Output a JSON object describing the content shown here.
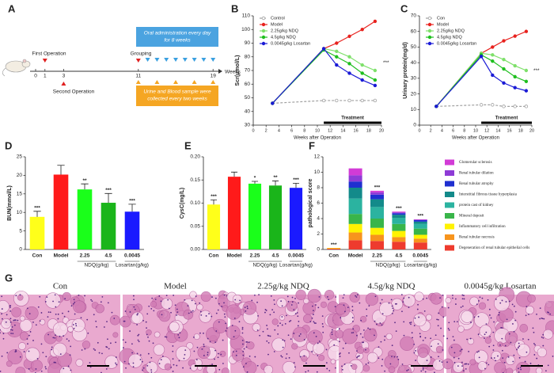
{
  "panel_labels": [
    "A",
    "B",
    "C",
    "D",
    "E",
    "F",
    "G"
  ],
  "timeline": {
    "ticks": [
      0,
      1,
      3,
      11,
      19
    ],
    "unit": "Weeks",
    "events": [
      "First Operation",
      "Second Operation",
      "Grouping"
    ],
    "boxes": [
      [
        "Oral administration every day",
        "for 8 weeks"
      ],
      [
        "Urine and Blood sample were",
        "collected every two weeks"
      ]
    ]
  },
  "chart_data": [
    {
      "type": "line",
      "ylabel": "Scr(μmol/L)",
      "xlabel": "Weeks after Operation",
      "annotation": "Treatment",
      "significance": "***",
      "legend": "upper left",
      "x": [
        3,
        11,
        13,
        15,
        17,
        19
      ],
      "xlim": [
        0,
        20
      ],
      "xticks": [
        0,
        2,
        4,
        6,
        8,
        10,
        12,
        14,
        16,
        18,
        20
      ],
      "ylim": [
        30,
        110
      ],
      "yticks": [
        30,
        40,
        50,
        60,
        70,
        80,
        90,
        100,
        110
      ],
      "series": [
        {
          "name": "Control",
          "color": "#a0a0a0",
          "linestyle": "dashed",
          "values": [
            46,
            48,
            48,
            48,
            48,
            48
          ]
        },
        {
          "name": "Model",
          "color": "#e8221e",
          "values": [
            46,
            86,
            90,
            95,
            100,
            106
          ]
        },
        {
          "name": "2.25g/kg NDQ",
          "color": "#7ee06a",
          "values": [
            46,
            86,
            84,
            80,
            74,
            70
          ]
        },
        {
          "name": "4.5g/kg NDQ",
          "color": "#1fbf1f",
          "values": [
            46,
            85,
            80,
            75,
            68,
            63
          ]
        },
        {
          "name": "0.0045g/kg Losartan",
          "color": "#1b1bd6",
          "values": [
            46,
            86,
            74,
            68,
            63,
            59
          ]
        }
      ]
    },
    {
      "type": "line",
      "ylabel": "Urinary protein(mg/d)",
      "xlabel": "Weeks after Operation",
      "annotation": "Treatment",
      "significance": "***",
      "legend": "upper left",
      "x": [
        3,
        11,
        13,
        15,
        17,
        19
      ],
      "xlim": [
        0,
        20
      ],
      "xticks": [
        0,
        2,
        4,
        6,
        8,
        10,
        12,
        14,
        16,
        18,
        20
      ],
      "ylim": [
        0,
        70
      ],
      "yticks": [
        0,
        10,
        20,
        30,
        40,
        50,
        60,
        70
      ],
      "series": [
        {
          "name": "Con",
          "color": "#a0a0a0",
          "linestyle": "dashed",
          "values": [
            12,
            13,
            13,
            12,
            12,
            12
          ]
        },
        {
          "name": "Model",
          "color": "#e8221e",
          "values": [
            12,
            46,
            50,
            54,
            57,
            60
          ]
        },
        {
          "name": "2.25g/kg NDQ",
          "color": "#7ee06a",
          "values": [
            12,
            46,
            45,
            42,
            38,
            35
          ]
        },
        {
          "name": "4.5g/kg NDQ",
          "color": "#1fbf1f",
          "values": [
            12,
            45,
            41,
            36,
            31,
            28
          ]
        },
        {
          "name": "0.0045g/kg Losartan",
          "color": "#1b1bd6",
          "values": [
            12,
            44,
            32,
            27,
            24,
            22
          ]
        }
      ]
    },
    {
      "type": "bar",
      "ylabel": "BUN(mmol/L)",
      "categories": [
        "Con",
        "Model",
        "2.25",
        "4.5",
        "0.0045"
      ],
      "group_labels": [
        "NDQ(g/kg)",
        "Losartan(g/kg)"
      ],
      "values": [
        8.8,
        20.2,
        16.2,
        12.6,
        10.2
      ],
      "errors": [
        1.5,
        2.5,
        1.5,
        2.5,
        2.0
      ],
      "colors": [
        "#ffff1a",
        "#ff1a1a",
        "#1aff1a",
        "#1ab51a",
        "#1a1aff"
      ],
      "significance": [
        "***",
        null,
        "**",
        "***",
        "***"
      ],
      "ylim": [
        0,
        25
      ],
      "yticks": [
        0,
        5,
        10,
        15,
        20,
        25
      ]
    },
    {
      "type": "bar",
      "ylabel": "CysC(mg/L)",
      "categories": [
        "Con",
        "Model",
        "2.25",
        "4.5",
        "0.0045"
      ],
      "group_labels": [
        "NDQ(g/kg)",
        "Losartan(g/kg)"
      ],
      "values": [
        0.097,
        0.157,
        0.142,
        0.138,
        0.133
      ],
      "errors": [
        0.01,
        0.01,
        0.005,
        0.01,
        0.01
      ],
      "colors": [
        "#ffff1a",
        "#ff1a1a",
        "#1aff1a",
        "#1ab51a",
        "#1a1aff"
      ],
      "significance": [
        "***",
        null,
        "*",
        "**",
        "***"
      ],
      "ylim": [
        0,
        0.2
      ],
      "yticks": [
        {
          "value": 0,
          "label": "0.00"
        },
        {
          "value": 0.05,
          "label": "0.05"
        },
        {
          "value": 0.1,
          "label": "0.10"
        },
        {
          "value": 0.15,
          "label": "0.15"
        },
        {
          "value": 0.2,
          "label": "0.20"
        }
      ]
    },
    {
      "type": "stacked_bar",
      "ylabel": "pathological score",
      "categories": [
        "Con",
        "Model",
        "2.25",
        "4.5",
        "0.0045"
      ],
      "group_labels": [
        "NDQ(g/kg)",
        "Losartan(g/kg)"
      ],
      "significance": [
        "***",
        null,
        "***",
        "***",
        "***"
      ],
      "ylim": [
        0,
        12
      ],
      "yticks": [
        0,
        2,
        4,
        6,
        8,
        10,
        12
      ],
      "series": [
        {
          "name": "Degeneration of renal tubular epithelial cells",
          "color": "#ee3b2e",
          "values": [
            0.1,
            1.2,
            1.1,
            1.0,
            0.9
          ]
        },
        {
          "name": "Renal tubular necrosis",
          "color": "#f7941d",
          "values": [
            0.05,
            1.0,
            0.8,
            0.6,
            0.5
          ]
        },
        {
          "name": "Inflammatory cell infiltration",
          "color": "#fff200",
          "values": [
            0.05,
            1.1,
            0.9,
            0.8,
            0.5
          ]
        },
        {
          "name": "Mineral deposit",
          "color": "#39b54a",
          "values": [
            0,
            1.3,
            1.2,
            0.9,
            0.8
          ]
        },
        {
          "name": "protein cast of kidney",
          "color": "#2bb3a0",
          "values": [
            0,
            2.0,
            1.5,
            0.8,
            0.6
          ]
        },
        {
          "name": "Interstitial fibrous tissue hyperplasia",
          "color": "#138a8a",
          "values": [
            0,
            1.4,
            1.0,
            0.4,
            0.3
          ]
        },
        {
          "name": "Renal tubular atrophy",
          "color": "#1f2fd0",
          "values": [
            0,
            0.8,
            0.6,
            0.2,
            0.2
          ]
        },
        {
          "name": "Renal tubular dilation",
          "color": "#8e3bd6",
          "values": [
            0,
            0.8,
            0.3,
            0.1,
            0.05
          ]
        },
        {
          "name": "Glomerular sclerosis",
          "color": "#d23bd6",
          "values": [
            0,
            0.9,
            0.2,
            0.1,
            0.05
          ]
        }
      ]
    }
  ],
  "histology": {
    "titles": [
      "Con",
      "Model",
      "2.25g/kg NDQ",
      "4.5g/kg NDQ",
      "0.0045g/kg Losartan"
    ]
  }
}
